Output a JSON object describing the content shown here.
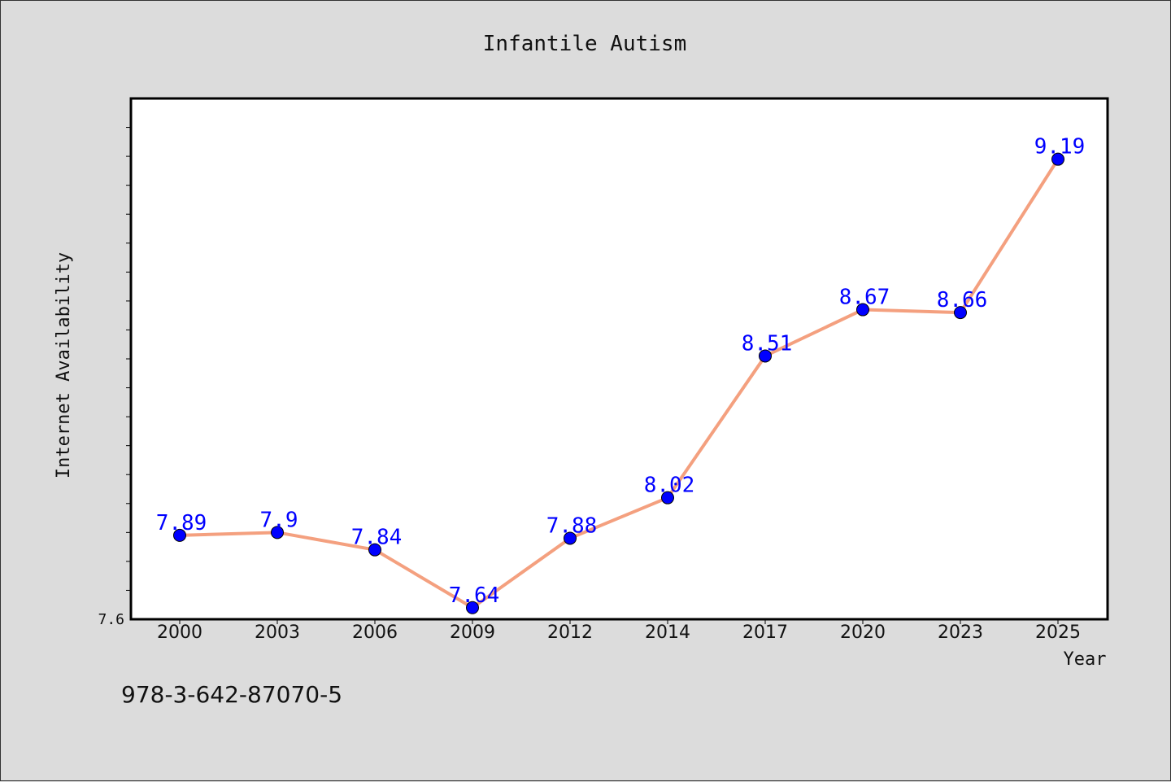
{
  "chart_data": {
    "type": "line",
    "title": "Infantile Autism",
    "xlabel": "Year",
    "ylabel": "Internet Availability",
    "categories": [
      "2000",
      "2003",
      "2006",
      "2009",
      "2012",
      "2014",
      "2017",
      "2020",
      "2023",
      "2025"
    ],
    "series": [
      {
        "values": [
          7.89,
          7.9,
          7.84,
          7.64,
          7.88,
          8.02,
          8.51,
          8.67,
          8.66,
          9.19
        ],
        "data_labels": [
          "7.89",
          "7.9",
          "7.84",
          "7.64",
          "7.88",
          "8.02",
          "8.51",
          "8.67",
          "8.66",
          "9.19"
        ]
      }
    ],
    "ylim": [
      7.6,
      9.4
    ],
    "y_tick_labels": [
      "7.6"
    ],
    "grid": false,
    "line_color": "#f4a07f",
    "marker_color": "#0000ff",
    "label_color": "#0000ff"
  },
  "footnote": "978-3-642-87070-5"
}
